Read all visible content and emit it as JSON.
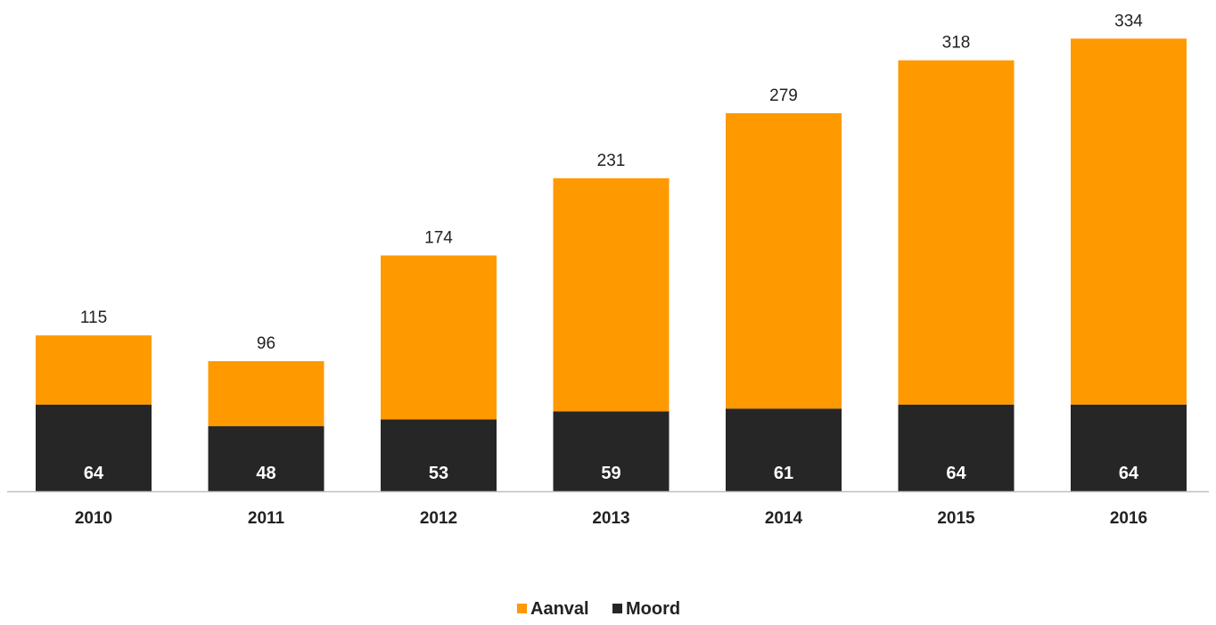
{
  "chart_data": {
    "type": "bar",
    "stacked": true,
    "categories": [
      "2010",
      "2011",
      "2012",
      "2013",
      "2014",
      "2015",
      "2016"
    ],
    "series": [
      {
        "name": "Moord",
        "color": "#262626",
        "values": [
          64,
          48,
          53,
          59,
          61,
          64,
          64
        ]
      },
      {
        "name": "Aanval",
        "color": "#ff9900",
        "values": [
          51,
          48,
          121,
          172,
          218,
          254,
          270
        ]
      }
    ],
    "totals": [
      115,
      96,
      174,
      231,
      279,
      318,
      334
    ],
    "title": "",
    "xlabel": "",
    "ylabel": "",
    "ylim": [
      0,
      340
    ],
    "grid": false,
    "legend": {
      "position": "bottom-center",
      "entries": [
        "Aanval",
        "Moord"
      ]
    }
  }
}
